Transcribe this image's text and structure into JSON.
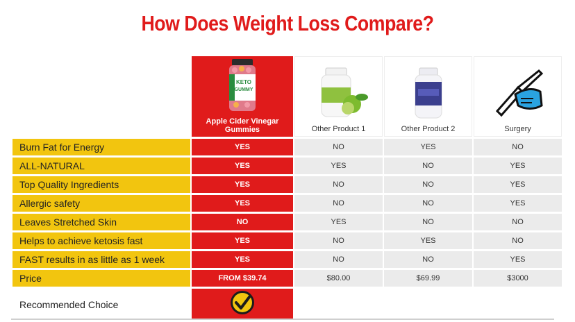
{
  "title": "How Does Weight Loss Compare?",
  "columns": [
    {
      "name": "Apple Cider Vinegar Gummies",
      "image": "keto-gummy-bottle"
    },
    {
      "name": "Other Product 1",
      "image": "garcinia-bottle"
    },
    {
      "name": "Other Product 2",
      "image": "keto-capsule-bottle"
    },
    {
      "name": "Surgery",
      "image": "scalpel-hand-icon"
    }
  ],
  "product_label": {
    "brand": "KETO",
    "line2": "GUMMY"
  },
  "rows": [
    {
      "label": "Burn Fat for Energy",
      "values": [
        "YES",
        "NO",
        "YES",
        "NO"
      ]
    },
    {
      "label": "ALL-NATURAL",
      "values": [
        "YES",
        "YES",
        "NO",
        "YES"
      ]
    },
    {
      "label": "Top Quality Ingredients",
      "values": [
        "YES",
        "NO",
        "NO",
        "YES"
      ]
    },
    {
      "label": "Allergic safety",
      "values": [
        "YES",
        "NO",
        "NO",
        "YES"
      ]
    },
    {
      "label": "Leaves Stretched Skin",
      "values": [
        "NO",
        "YES",
        "NO",
        "NO"
      ]
    },
    {
      "label": "Helps to achieve ketosis fast",
      "values": [
        "YES",
        "NO",
        "YES",
        "NO"
      ]
    },
    {
      "label": "FAST results in as little as 1 week",
      "values": [
        "YES",
        "NO",
        "NO",
        "YES"
      ]
    },
    {
      "label": "Price",
      "values": [
        "FROM $39.74",
        "$80.00",
        "$69.99",
        "$3000"
      ]
    }
  ],
  "recommended": {
    "label": "Recommended Choice",
    "icon": "checkmark-badge-icon"
  },
  "colors": {
    "red": "#e01b1b",
    "yellow": "#f2c50f",
    "gray": "#ebebeb"
  }
}
